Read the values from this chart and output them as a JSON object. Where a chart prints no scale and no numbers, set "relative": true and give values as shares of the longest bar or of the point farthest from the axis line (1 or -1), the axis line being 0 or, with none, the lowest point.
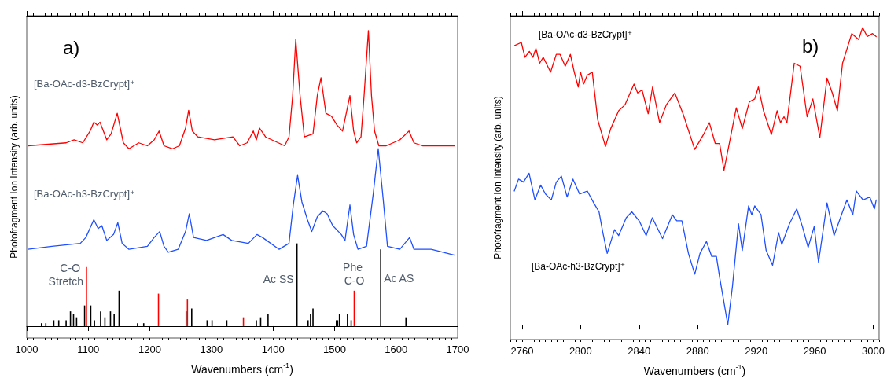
{
  "chart_data": [
    {
      "type": "line",
      "xlabel": "Wavenumbers (cm$^{-1}$)",
      "ylabel": "Photofragment Ion Intensity (arb. units)",
      "relative": true,
      "xlim": [
        1000,
        1700
      ],
      "xticks": [
        1000,
        1100,
        1200,
        1300,
        1400,
        1500,
        1600,
        1700
      ],
      "grid": false,
      "legend": false,
      "marker": "none",
      "line_style": "solid",
      "annotations": [
        "a)",
        {
          "text": "C-O Stretch",
          "x": 1097,
          "y": 0.2
        },
        {
          "text": "Ac SS",
          "x": 1439,
          "y": 0.28
        },
        {
          "text": "Phe C-O",
          "x": 1532,
          "y": 0.12
        },
        {
          "text": "Ac AS",
          "x": 1575,
          "y": 0.26
        }
      ],
      "series": [
        {
          "name": "[Ba-OAc-d3-BzCrypt]⁺",
          "color": "#ff0000",
          "x": [
            1002,
            1064,
            1077,
            1091,
            1103,
            1109,
            1115,
            1119,
            1130,
            1137,
            1147,
            1157,
            1166,
            1182,
            1196,
            1207,
            1215,
            1223,
            1237,
            1248,
            1258,
            1263,
            1269,
            1278,
            1305,
            1335,
            1346,
            1358,
            1368,
            1373,
            1378,
            1388,
            1419,
            1426,
            1432,
            1437,
            1444,
            1451,
            1465,
            1472,
            1478,
            1486,
            1495,
            1504,
            1513,
            1520,
            1525,
            1531,
            1536,
            1543,
            1548,
            1555,
            1560,
            1565,
            1572,
            1584,
            1606,
            1621,
            1629,
            1643,
            1675,
            1695
          ],
          "values": [
            0.61,
            0.62,
            0.63,
            0.62,
            0.66,
            0.69,
            0.68,
            0.69,
            0.63,
            0.65,
            0.72,
            0.62,
            0.6,
            0.62,
            0.61,
            0.63,
            0.66,
            0.61,
            0.6,
            0.61,
            0.67,
            0.73,
            0.66,
            0.64,
            0.63,
            0.64,
            0.61,
            0.62,
            0.66,
            0.63,
            0.67,
            0.64,
            0.61,
            0.64,
            0.78,
            0.97,
            0.78,
            0.64,
            0.65,
            0.78,
            0.84,
            0.72,
            0.71,
            0.68,
            0.66,
            0.73,
            0.78,
            0.66,
            0.62,
            0.64,
            0.78,
            1.0,
            0.78,
            0.66,
            0.61,
            0.61,
            0.63,
            0.66,
            0.62,
            0.61,
            0.61,
            0.61
          ]
        },
        {
          "name": "[Ba-OAc-h3-BzCrypt]⁺",
          "color": "#1f4fff",
          "x": [
            1002,
            1041,
            1087,
            1096,
            1109,
            1116,
            1122,
            1130,
            1141,
            1148,
            1155,
            1166,
            1196,
            1207,
            1216,
            1223,
            1230,
            1246,
            1258,
            1264,
            1271,
            1292,
            1319,
            1333,
            1360,
            1374,
            1383,
            1410,
            1426,
            1433,
            1440,
            1447,
            1456,
            1463,
            1472,
            1481,
            1488,
            1497,
            1511,
            1517,
            1525,
            1531,
            1538,
            1552,
            1563,
            1571,
            1579,
            1586,
            1606,
            1622,
            1629,
            1657,
            1695
          ],
          "values": [
            0.26,
            0.27,
            0.28,
            0.3,
            0.36,
            0.33,
            0.34,
            0.29,
            0.31,
            0.35,
            0.28,
            0.26,
            0.27,
            0.3,
            0.32,
            0.27,
            0.25,
            0.26,
            0.32,
            0.38,
            0.3,
            0.29,
            0.31,
            0.29,
            0.28,
            0.31,
            0.3,
            0.26,
            0.28,
            0.41,
            0.51,
            0.42,
            0.36,
            0.32,
            0.37,
            0.39,
            0.38,
            0.34,
            0.31,
            0.29,
            0.41,
            0.31,
            0.26,
            0.27,
            0.45,
            0.6,
            0.43,
            0.27,
            0.26,
            0.3,
            0.26,
            0.26,
            0.24
          ]
        },
        {
          "type": "bar",
          "x": [
            1024,
            1031,
            1044,
            1052,
            1064,
            1071,
            1076,
            1081,
            1094,
            1097,
            1104,
            1110,
            1120,
            1127,
            1136,
            1142,
            1150,
            1180,
            1190,
            1214,
            1259,
            1261,
            1268,
            1293,
            1301,
            1325,
            1352,
            1373,
            1380,
            1392,
            1439,
            1457,
            1461,
            1465,
            1503,
            1505,
            1508,
            1521,
            1527,
            1532,
            1575,
            1616
          ],
          "values": [
            0.01,
            0.01,
            0.02,
            0.02,
            0.02,
            0.05,
            0.04,
            0.03,
            0.07,
            0.2,
            0.07,
            0.02,
            0.05,
            0.03,
            0.05,
            0.04,
            0.12,
            0.01,
            0.01,
            0.11,
            0.05,
            0.09,
            0.06,
            0.02,
            0.02,
            0.02,
            0.03,
            0.02,
            0.03,
            0.04,
            0.28,
            0.02,
            0.04,
            0.06,
            0.02,
            0.02,
            0.04,
            0.04,
            0.02,
            0.12,
            0.26,
            0.03
          ],
          "colors": [
            "#000000",
            "#000000",
            "#000000",
            "#000000",
            "#000000",
            "#000000",
            "#000000",
            "#000000",
            "#000000",
            "#ff0000",
            "#000000",
            "#000000",
            "#000000",
            "#000000",
            "#000000",
            "#000000",
            "#000000",
            "#000000",
            "#000000",
            "#ff0000",
            "#000000",
            "#ff0000",
            "#000000",
            "#000000",
            "#000000",
            "#000000",
            "#ff0000",
            "#000000",
            "#000000",
            "#000000",
            "#000000",
            "#000000",
            "#000000",
            "#000000",
            "#000000",
            "#000000",
            "#000000",
            "#000000",
            "#000000",
            "#ff0000",
            "#000000",
            "#000000"
          ]
        }
      ]
    },
    {
      "type": "line",
      "xlabel": "Wavenumbers (cm$^{-1}$)",
      "ylabel": "Photofragment Ion Intensity (arb. units)",
      "relative": true,
      "xlim": [
        2752,
        3004
      ],
      "xticks": [
        2760,
        2800,
        2840,
        2880,
        2920,
        2960,
        3000
      ],
      "grid": false,
      "legend": false,
      "marker": "none",
      "line_style": "solid",
      "annotations": [
        "b)"
      ],
      "series": [
        {
          "name": "[Ba-OAc-d3-BzCrypt]⁺",
          "color": "#ff0000",
          "x": [
            2755,
            2759.5,
            2762,
            2765,
            2767.4,
            2769.5,
            2772,
            2774.5,
            2779.5,
            2783.4,
            2786,
            2789.5,
            2793,
            2795.7,
            2798.4,
            2800,
            2802,
            2804.6,
            2808,
            2811.7,
            2817,
            2820.6,
            2826,
            2830.3,
            2836.5,
            2839,
            2842,
            2846.2,
            2849.2,
            2854,
            2858.6,
            2864.4,
            2870,
            2878,
            2884,
            2888,
            2892,
            2895,
            2898,
            2902,
            2906.4,
            2910.5,
            2915.3,
            2919,
            2921.5,
            2925,
            2930.4,
            2934.3,
            2936.6,
            2939,
            2941,
            2946,
            2950,
            2954.8,
            2958.7,
            2963.5,
            2968.4,
            2972,
            2975.5,
            2979,
            2985.3,
            2990,
            2992.7,
            2995.9,
            2999.5,
            3002
          ],
          "values": [
            0.94,
            0.95,
            0.9,
            0.92,
            0.9,
            0.93,
            0.88,
            0.9,
            0.85,
            0.91,
            0.91,
            0.87,
            0.91,
            0.85,
            0.8,
            0.85,
            0.81,
            0.84,
            0.85,
            0.69,
            0.6,
            0.66,
            0.72,
            0.74,
            0.81,
            0.78,
            0.79,
            0.71,
            0.8,
            0.68,
            0.74,
            0.78,
            0.71,
            0.59,
            0.64,
            0.68,
            0.61,
            0.61,
            0.52,
            0.62,
            0.73,
            0.66,
            0.75,
            0.76,
            0.8,
            0.72,
            0.64,
            0.72,
            0.68,
            0.7,
            0.68,
            0.88,
            0.87,
            0.7,
            0.76,
            0.63,
            0.83,
            0.78,
            0.72,
            0.88,
            0.98,
            0.96,
            1.0,
            0.97,
            0.98,
            0.97
          ]
        },
        {
          "name": "[Ba-OAc-h3-BzCrypt]⁺",
          "color": "#1f4fff",
          "x": [
            2754.7,
            2757.6,
            2761,
            2764.8,
            2768.8,
            2772.7,
            2776,
            2780,
            2783.4,
            2786.9,
            2790.8,
            2794.8,
            2799.3,
            2804.6,
            2809,
            2812.6,
            2815.2,
            2818.2,
            2823.2,
            2826,
            2831.2,
            2835,
            2840,
            2844.8,
            2849,
            2856,
            2862.7,
            2865.7,
            2869.2,
            2873.7,
            2878,
            2881.6,
            2886,
            2889.6,
            2892.8,
            2895,
            2900.6,
            2903.8,
            2907.9,
            2910.5,
            2914.8,
            2917,
            2919,
            2923.3,
            2926.8,
            2931.2,
            2935.3,
            2937.5,
            2942.8,
            2947.7,
            2951.6,
            2955.5,
            2959.6,
            2962.6,
            2968.4,
            2973.2,
            2979,
            2982,
            2986,
            2988.4,
            2993,
            2997.6,
            3000.8,
            3002
          ],
          "values": [
            0.45,
            0.49,
            0.48,
            0.51,
            0.42,
            0.47,
            0.44,
            0.42,
            0.48,
            0.5,
            0.43,
            0.49,
            0.44,
            0.45,
            0.41,
            0.38,
            0.31,
            0.24,
            0.32,
            0.3,
            0.36,
            0.38,
            0.35,
            0.3,
            0.36,
            0.29,
            0.37,
            0.35,
            0.35,
            0.24,
            0.17,
            0.24,
            0.28,
            0.23,
            0.23,
            0.16,
            0.0,
            0.13,
            0.34,
            0.25,
            0.4,
            0.37,
            0.4,
            0.37,
            0.25,
            0.2,
            0.31,
            0.27,
            0.34,
            0.39,
            0.33,
            0.26,
            0.33,
            0.21,
            0.41,
            0.3,
            0.38,
            0.42,
            0.37,
            0.45,
            0.42,
            0.43,
            0.39,
            0.42
          ]
        }
      ]
    }
  ]
}
